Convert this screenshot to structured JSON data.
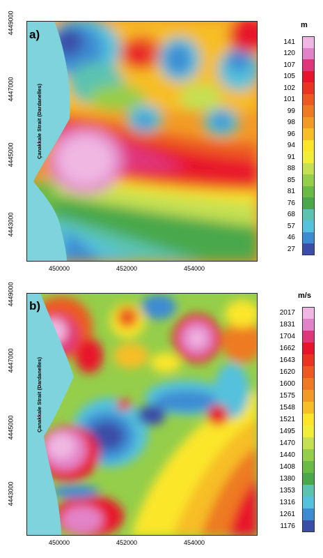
{
  "panel_a": {
    "letter": "a)",
    "strait_label": "Çanakkale Strait (Dardanelles)",
    "y_ticks": [
      "4449000",
      "4447000",
      "4445000",
      "4443000"
    ],
    "x_ticks": [
      "450000",
      "452000",
      "454000"
    ],
    "legend_unit": "m",
    "legend_values": [
      "141",
      "120",
      "107",
      "105",
      "102",
      "101",
      "99",
      "98",
      "96",
      "94",
      "91",
      "88",
      "85",
      "81",
      "76",
      "68",
      "57",
      "46",
      "27"
    ],
    "legend_colors": [
      "#f0b7e2",
      "#e283c8",
      "#e0367a",
      "#e8152a",
      "#eb3322",
      "#ec5a22",
      "#ee7a24",
      "#f29a26",
      "#f7be28",
      "#fbe629",
      "#f1ee3a",
      "#c5e052",
      "#95ce4a",
      "#69bb45",
      "#4aa84b",
      "#5cc3b0",
      "#55c1dc",
      "#3d8bd3",
      "#3a4ea7"
    ]
  },
  "panel_b": {
    "letter": "b)",
    "strait_label": "Çanakkale Strait (Dardanelles)",
    "y_ticks": [
      "4449000",
      "4447000",
      "4445000",
      "4443000"
    ],
    "x_ticks": [
      "450000",
      "452000",
      "454000"
    ],
    "legend_unit": "m/s",
    "legend_values": [
      "2017",
      "1831",
      "1704",
      "1662",
      "1643",
      "1620",
      "1600",
      "1575",
      "1548",
      "1521",
      "1495",
      "1470",
      "1440",
      "1408",
      "1380",
      "1353",
      "1316",
      "1261",
      "1176"
    ],
    "legend_colors": [
      "#f0b7e2",
      "#e283c8",
      "#e0367a",
      "#e8152a",
      "#eb3322",
      "#ec5a22",
      "#ee7a24",
      "#f29a26",
      "#f7be28",
      "#fbe629",
      "#f1ee3a",
      "#c5e052",
      "#95ce4a",
      "#69bb45",
      "#4aa84b",
      "#5cc3b0",
      "#55c1dc",
      "#3d8bd3",
      "#3a4ea7"
    ]
  },
  "colors": {
    "sea": "#7fd3dc",
    "frame": "#222222"
  }
}
